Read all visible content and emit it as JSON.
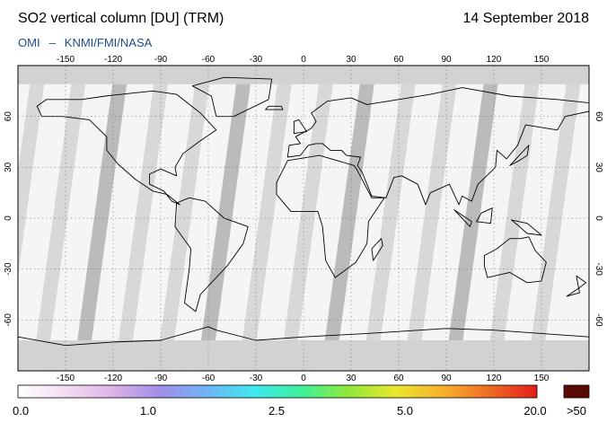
{
  "header": {
    "title": "SO2 vertical column [DU] (TRM)",
    "date": "14 September 2018",
    "credit_left": "OMI",
    "credit_sep": "–",
    "credit_right": "KNMI/FMI/NASA"
  },
  "map": {
    "lon_ticks": [
      "-150",
      "-120",
      "-90",
      "-60",
      "-30",
      "0",
      "30",
      "60",
      "90",
      "120",
      "150"
    ],
    "lat_ticks": [
      "60",
      "30",
      "0",
      "-30",
      "-60"
    ],
    "lon_range": [
      -180,
      180
    ],
    "lat_range": [
      -90,
      90
    ],
    "grid": true,
    "colors": {
      "background": "#f7f4f8",
      "no_data": "#d2d2d2",
      "no_data_dark": "#a8a8a8",
      "coastline": "#000000",
      "grid": "#666666"
    }
  },
  "colorbar": {
    "labels": [
      "0.0",
      "1.0",
      "2.5",
      "5.0",
      "20.0",
      ">50"
    ],
    "stops": [
      "#ffffff",
      "#f4ddf2",
      "#dcb3e8",
      "#a08ee8",
      "#6fb4f2",
      "#3ee8f0",
      "#3cf09a",
      "#8fe83a",
      "#e9e62e",
      "#f7b12a",
      "#ef6b26",
      "#e31c18"
    ],
    "overflow_color": "#5a0a05"
  }
}
